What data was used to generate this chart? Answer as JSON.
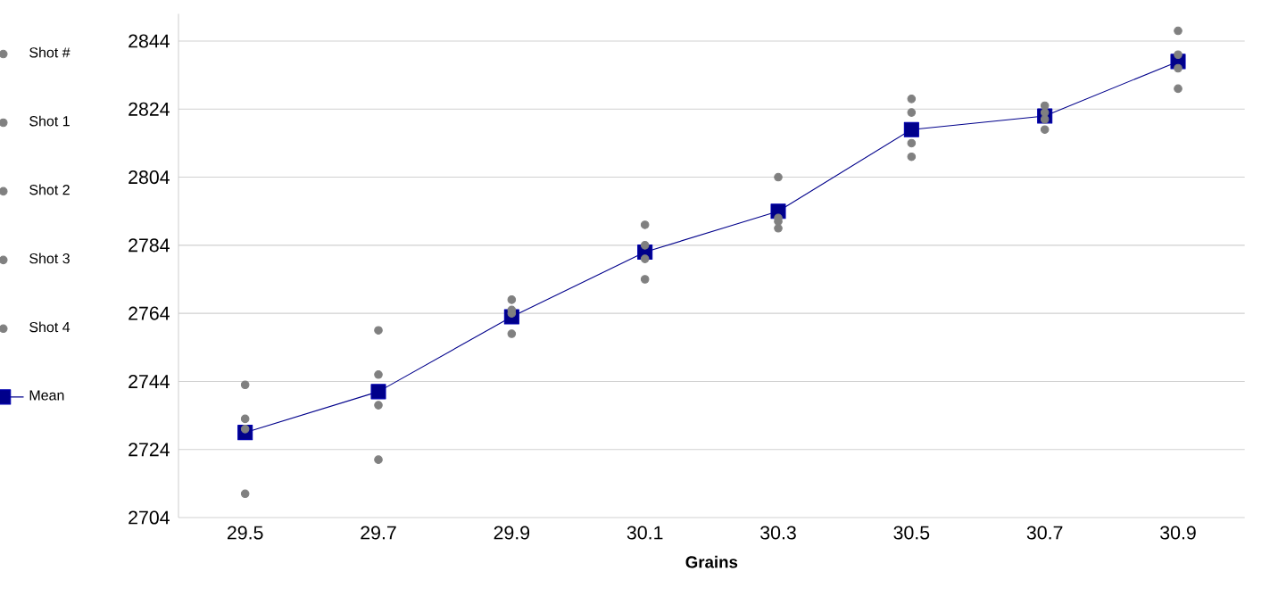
{
  "chart_data": {
    "type": "scatter",
    "xlabel": "Grains",
    "categories": [
      "29.5",
      "29.7",
      "29.9",
      "30.1",
      "30.3",
      "30.5",
      "30.7",
      "30.9"
    ],
    "series": [
      {
        "name": "Shot #",
        "color": "#808080",
        "marker": "circle",
        "values": [
          null,
          null,
          null,
          null,
          null,
          null,
          null,
          null
        ]
      },
      {
        "name": "Shot 1",
        "color": "#808080",
        "marker": "circle",
        "values": [
          2743,
          2759,
          2768,
          2790,
          2804,
          2827,
          2825,
          2847
        ]
      },
      {
        "name": "Shot 2",
        "color": "#808080",
        "marker": "circle",
        "values": [
          2733,
          2746,
          2765,
          2784,
          2792,
          2823,
          2823,
          2840
        ]
      },
      {
        "name": "Shot 3",
        "color": "#808080",
        "marker": "circle",
        "values": [
          2711,
          2737,
          2764,
          2780,
          2789,
          2814,
          2821,
          2836
        ]
      },
      {
        "name": "Shot 4",
        "color": "#808080",
        "marker": "circle",
        "values": [
          2730,
          2721,
          2758,
          2774,
          2791,
          2810,
          2818,
          2830
        ]
      },
      {
        "name": "Mean",
        "type": "line",
        "marker": "square",
        "color": "#00008b",
        "values": [
          2729,
          2741,
          2763,
          2782,
          2794,
          2818,
          2822,
          2838
        ]
      }
    ],
    "ylim": [
      2704,
      2852
    ],
    "yticks": [
      2704,
      2724,
      2744,
      2764,
      2784,
      2804,
      2824,
      2844
    ],
    "grid": "y",
    "legend": "left"
  }
}
